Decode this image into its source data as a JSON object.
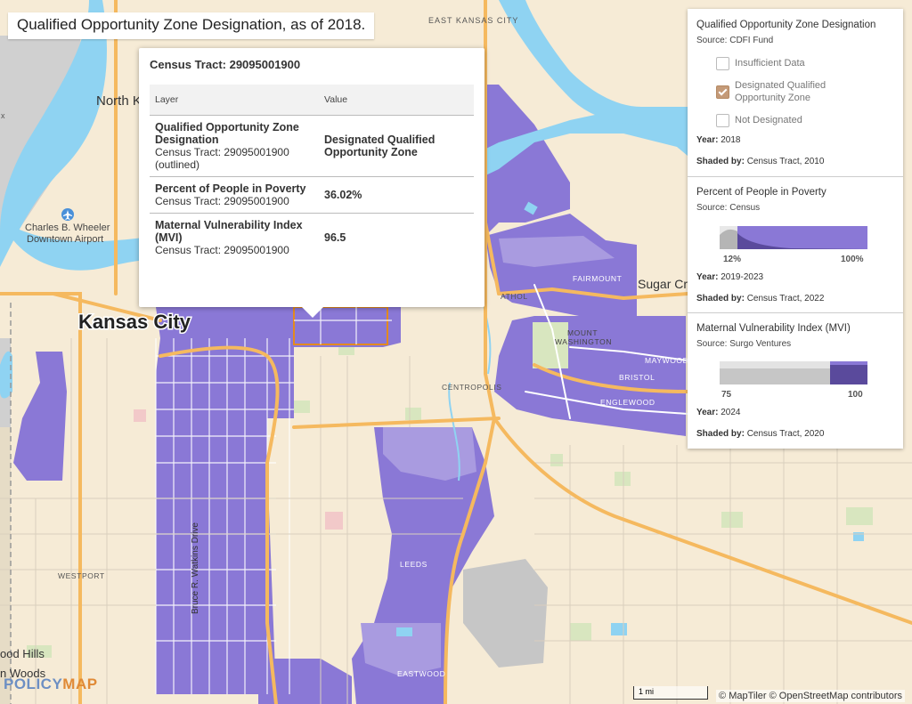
{
  "title": "Qualified Opportunity Zone Designation, as of 2018.",
  "popup": {
    "heading": "Census Tract: 29095001900",
    "columns": [
      "Layer",
      "Value"
    ],
    "rows": [
      {
        "layer": "Qualified Opportunity Zone Designation",
        "sub": "Census Tract: 29095001900 (outlined)",
        "value": "Designated Qualified Opportunity Zone"
      },
      {
        "layer": "Percent of People in Poverty",
        "sub": "Census Tract: 29095001900",
        "value": "36.02%"
      },
      {
        "layer": "Maternal Vulnerability Index (MVI)",
        "sub": "Census Tract: 29095001900",
        "value": "96.5"
      }
    ]
  },
  "legend": {
    "qoz": {
      "title": "Qualified Opportunity Zone Designation",
      "source": "Source: CDFI Fund",
      "options": [
        {
          "label": "Insufficient Data",
          "checked": false
        },
        {
          "label": "Designated Qualified Opportunity Zone",
          "checked": true
        },
        {
          "label": "Not Designated",
          "checked": false
        }
      ],
      "year_label": "Year:",
      "year": "2018",
      "shaded_label": "Shaded by:",
      "shaded": "Census Tract, 2010"
    },
    "poverty": {
      "title": "Percent of People in Poverty",
      "source": "Source: Census",
      "min": "12%",
      "max": "100%",
      "year_label": "Year:",
      "year": "2019-2023",
      "shaded_label": "Shaded by:",
      "shaded": "Census Tract, 2022"
    },
    "mvi": {
      "title": "Maternal Vulnerability Index (MVI)",
      "source": "Source: Surgo Ventures",
      "min": "75",
      "max": "100",
      "year_label": "Year:",
      "year": "2024",
      "shaded_label": "Shaded by:",
      "shaded": "Census Tract, 2020"
    }
  },
  "map_labels": {
    "east_kansas_city": "EAST KANSAS CITY",
    "north_kc": "North K",
    "charles": "Charles B. Wheeler",
    "downtown_airport": "Downtown Airport",
    "kansas_city": "Kansas City",
    "fairmount": "FAIRMOUNT",
    "sugar_creek": "Sugar Cre",
    "athol": "ATHOL",
    "mount": "MOUNT",
    "washington": "WASHINGTON",
    "maywood": "MAYWOOD",
    "bristol": "BRISTOL",
    "englewood": "ENGLEWOOD",
    "centropolis": "CENTROPOLIS",
    "westport": "WESTPORT",
    "leeds": "LEEDS",
    "eastwood": "EASTWOOD",
    "bruce": "Bruce R. Watkins Drive",
    "wood_hills": "ood Hills",
    "n_woods": "n Woods",
    "x_label": "x"
  },
  "scalebar": "1 mi",
  "credits": "© MapTiler © OpenStreetMap contributors",
  "logo": {
    "part1": "POLICY",
    "part2": "MAP"
  },
  "colors": {
    "qoz": "#8a78d6",
    "qoz_light": "#a99be0",
    "water": "#8fd3f2",
    "land": "#f6ebd6",
    "park": "#d8e6bf",
    "highway": "#f5b95f",
    "outline": "#e38a1f",
    "gray": "#c6c6c6"
  }
}
